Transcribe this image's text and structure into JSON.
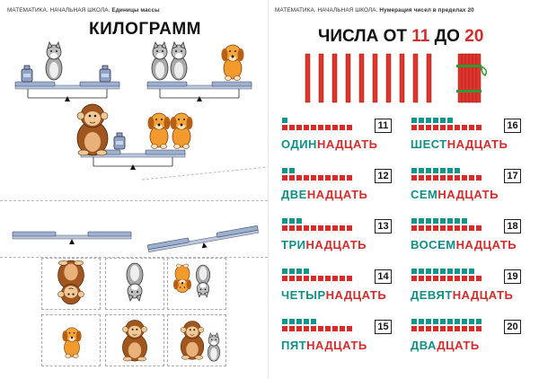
{
  "left_page": {
    "header_subject": "МАТЕМАТИКА. НАЧАЛЬНАЯ ШКОЛА.",
    "header_topic": "Единицы массы",
    "title": "КИЛОГРАММ"
  },
  "right_page": {
    "header_subject": "МАТЕМАТИКА. НАЧАЛЬНАЯ ШКОЛА.",
    "header_topic": "Нумерация чисел в пределах 20",
    "title_prefix": "ЧИСЛА ОТ",
    "title_from": "11",
    "title_mid": "ДО",
    "title_to": "20",
    "colors": {
      "teal": "#10968c",
      "red": "#d72a2a",
      "stick": "#e0342c"
    },
    "numbers": [
      {
        "value": "11",
        "stem": "ОДИН",
        "na": "НА",
        "dcat": "ДЦАТЬ",
        "units": 1
      },
      {
        "value": "12",
        "stem": "ДВЕ",
        "na": "НА",
        "dcat": "ДЦАТЬ",
        "units": 2
      },
      {
        "value": "13",
        "stem": "ТРИ",
        "na": "НА",
        "dcat": "ДЦАТЬ",
        "units": 3
      },
      {
        "value": "14",
        "stem": "ЧЕТЫР",
        "na": "НА",
        "dcat": "ДЦАТЬ",
        "units": 4
      },
      {
        "value": "15",
        "stem": "ПЯТ",
        "na": "НА",
        "dcat": "ДЦАТЬ",
        "units": 5
      },
      {
        "value": "16",
        "stem": "ШЕСТ",
        "na": "НА",
        "dcat": "ДЦАТЬ",
        "units": 6
      },
      {
        "value": "17",
        "stem": "СЕМ",
        "na": "НА",
        "dcat": "ДЦАТЬ",
        "units": 7
      },
      {
        "value": "18",
        "stem": "ВОСЕМ",
        "na": "НА",
        "dcat": "ДЦАТЬ",
        "units": 8
      },
      {
        "value": "19",
        "stem": "ДЕВЯТ",
        "na": "НА",
        "dcat": "ДЦАТЬ",
        "units": 9
      },
      {
        "value": "20",
        "stem": "ДВА",
        "na": "",
        "dcat": "ДЦАТЬ",
        "units": 10
      }
    ]
  }
}
